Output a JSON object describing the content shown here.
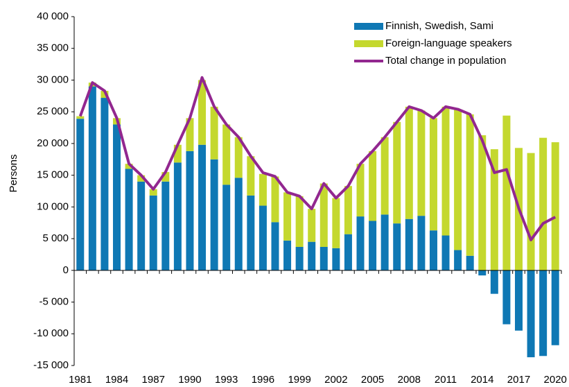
{
  "chart_data": {
    "type": "bar-line",
    "y_label": "Persons",
    "categories": [
      "1981",
      null,
      null,
      "1984",
      null,
      null,
      "1987",
      null,
      null,
      "1990",
      null,
      null,
      "1993",
      null,
      null,
      "1996",
      null,
      null,
      "1999",
      null,
      null,
      "2002",
      null,
      null,
      "2005",
      null,
      null,
      "2008",
      null,
      null,
      "2011",
      null,
      null,
      "2014",
      null,
      null,
      "2017",
      null,
      null,
      "2020"
    ],
    "series": [
      {
        "name": "Finnish, Swedish, Sami",
        "type": "bar",
        "color": "#0f78b4",
        "values": [
          23900,
          29000,
          27200,
          23000,
          16000,
          14000,
          11800,
          14000,
          17000,
          18800,
          19800,
          17500,
          13500,
          14600,
          11800,
          10200,
          7600,
          4700,
          3700,
          4500,
          3700,
          3500,
          5700,
          8500,
          7800,
          8800,
          7400,
          8100,
          8600,
          6300,
          5500,
          3200,
          2300,
          -800,
          -3700,
          -8500,
          -9500,
          -13700,
          -13500,
          -11800
        ]
      },
      {
        "name": "Foreign-language speakers",
        "type": "bar",
        "color": "#c4d82e",
        "values": [
          400,
          600,
          1100,
          1000,
          800,
          1000,
          1000,
          1500,
          2800,
          5200,
          10200,
          8300,
          9500,
          6400,
          6200,
          5000,
          7200,
          7600,
          8000,
          5200,
          10000,
          7900,
          7600,
          8300,
          11000,
          12200,
          16000,
          17700,
          16600,
          17700,
          20300,
          22200,
          22300,
          21300,
          19100,
          24400,
          19300,
          18500,
          20900,
          20200
        ]
      },
      {
        "name": "Total change in population",
        "type": "line",
        "color": "#92278f",
        "values": [
          24300,
          29600,
          28300,
          24000,
          16800,
          15000,
          12800,
          15500,
          19800,
          24000,
          30400,
          25800,
          23000,
          21000,
          18000,
          15400,
          14800,
          12300,
          11700,
          9700,
          13700,
          11400,
          13300,
          16800,
          18800,
          21000,
          23400,
          25800,
          25200,
          24000,
          25800,
          25400,
          24600,
          20500,
          15400,
          15900,
          9800,
          4800,
          7400,
          8400
        ]
      }
    ],
    "ylim": [
      -15000,
      40000
    ],
    "yticks": [
      {
        "value": -15000,
        "label": "-15 000"
      },
      {
        "value": -10000,
        "label": "-10 000"
      },
      {
        "value": -5000,
        "label": "-5 000"
      },
      0,
      {
        "value": 5000,
        "label": "5 000"
      },
      {
        "value": 10000,
        "label": "10 000"
      },
      {
        "value": 15000,
        "label": "15 000"
      },
      {
        "value": 20000,
        "label": "20 000"
      },
      {
        "value": 25000,
        "label": "25 000"
      },
      {
        "value": 30000,
        "label": "30 000"
      },
      {
        "value": 35000,
        "label": "35 000"
      },
      {
        "value": 40000,
        "label": "40 000"
      }
    ],
    "legend": "top-right"
  }
}
